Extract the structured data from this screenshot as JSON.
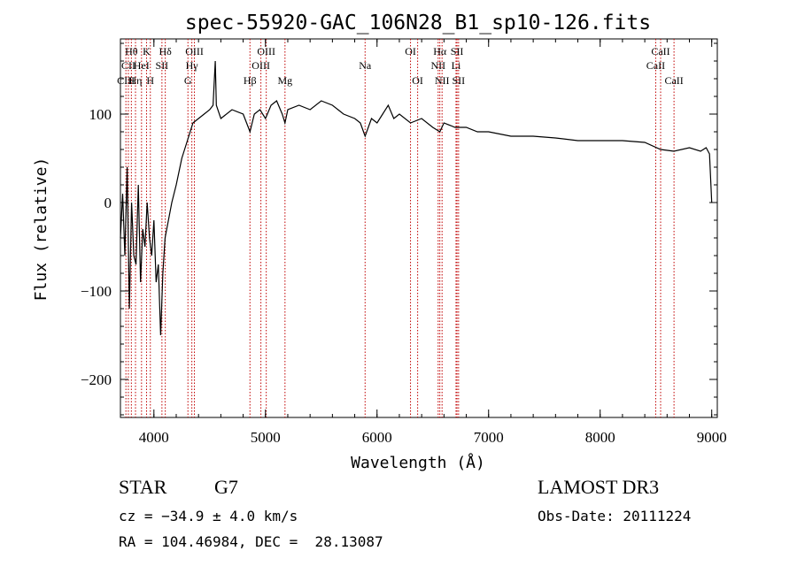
{
  "chart_data": {
    "type": "line",
    "title": "spec-55920-GAC_106N28_B1_sp10-126.fits",
    "xlabel": "Wavelength (Å)",
    "ylabel": "Flux (relative)",
    "xlim": [
      3700,
      9050
    ],
    "ylim": [
      -243,
      185
    ],
    "xticks": [
      4000,
      5000,
      6000,
      7000,
      8000,
      9000
    ],
    "yticks": [
      -200,
      -100,
      0,
      100
    ],
    "grid": false,
    "series": [
      {
        "name": "spectrum",
        "x": [
          3700,
          3720,
          3740,
          3760,
          3780,
          3800,
          3820,
          3840,
          3860,
          3880,
          3900,
          3920,
          3940,
          3960,
          3980,
          4000,
          4020,
          4040,
          4060,
          4080,
          4100,
          4130,
          4160,
          4200,
          4250,
          4300,
          4350,
          4400,
          4450,
          4500,
          4530,
          4550,
          4560,
          4600,
          4700,
          4800,
          4861,
          4900,
          4950,
          5000,
          5050,
          5100,
          5150,
          5175,
          5200,
          5300,
          5400,
          5500,
          5600,
          5700,
          5800,
          5850,
          5893,
          5950,
          6000,
          6050,
          6100,
          6150,
          6200,
          6300,
          6400,
          6500,
          6563,
          6600,
          6700,
          6800,
          6900,
          7000,
          7200,
          7400,
          7600,
          7800,
          8000,
          8200,
          8400,
          8542,
          8662,
          8800,
          8900,
          8950,
          8980,
          9000
        ],
        "y": [
          -40,
          10,
          -60,
          40,
          -120,
          0,
          -60,
          -70,
          20,
          -90,
          -30,
          -50,
          0,
          -40,
          -60,
          -20,
          -90,
          -70,
          -150,
          -80,
          -40,
          -20,
          0,
          20,
          50,
          70,
          90,
          95,
          100,
          105,
          110,
          160,
          110,
          95,
          105,
          100,
          80,
          100,
          105,
          95,
          110,
          115,
          100,
          90,
          105,
          110,
          105,
          115,
          110,
          100,
          95,
          90,
          75,
          95,
          90,
          100,
          110,
          95,
          100,
          90,
          95,
          85,
          80,
          90,
          85,
          85,
          80,
          80,
          75,
          75,
          73,
          70,
          70,
          70,
          68,
          60,
          58,
          62,
          58,
          62,
          55,
          0
        ]
      }
    ],
    "lines": [
      {
        "name": "Hθ",
        "wave": 3798,
        "row": 1
      },
      {
        "name": "CII",
        "wave": 3771,
        "row": 2
      },
      {
        "name": "CIII",
        "wave": 3749,
        "row": 3
      },
      {
        "name": "K",
        "wave": 3934,
        "row": 1
      },
      {
        "name": "HeI",
        "wave": 3889,
        "row": 2
      },
      {
        "name": "Hη",
        "wave": 3835,
        "row": 3
      },
      {
        "name": "H",
        "wave": 3968,
        "row": 3
      },
      {
        "name": "Hδ",
        "wave": 4102,
        "row": 1
      },
      {
        "name": "SII",
        "wave": 4072,
        "row": 2
      },
      {
        "name": "OIII",
        "wave": 4363,
        "row": 1
      },
      {
        "name": "Hγ",
        "wave": 4340,
        "row": 2
      },
      {
        "name": "G",
        "wave": 4305,
        "row": 3
      },
      {
        "name": "OIII",
        "wave": 5007,
        "row": 1
      },
      {
        "name": "OIII",
        "wave": 4959,
        "row": 2
      },
      {
        "name": "Hβ",
        "wave": 4861,
        "row": 3
      },
      {
        "name": "Mg",
        "wave": 5175,
        "row": 3
      },
      {
        "name": "Na",
        "wave": 5893,
        "row": 2
      },
      {
        "name": "OI",
        "wave": 6300,
        "row": 1
      },
      {
        "name": "OI",
        "wave": 6364,
        "row": 3
      },
      {
        "name": "Hα",
        "wave": 6563,
        "row": 1
      },
      {
        "name": "NII",
        "wave": 6548,
        "row": 2
      },
      {
        "name": "NII",
        "wave": 6583,
        "row": 3
      },
      {
        "name": "SII",
        "wave": 6717,
        "row": 1
      },
      {
        "name": "Li",
        "wave": 6708,
        "row": 2
      },
      {
        "name": "SII",
        "wave": 6731,
        "row": 3
      },
      {
        "name": "CaII",
        "wave": 8542,
        "row": 1
      },
      {
        "name": "CaII",
        "wave": 8498,
        "row": 2
      },
      {
        "name": "CaII",
        "wave": 8662,
        "row": 3
      }
    ]
  },
  "info": {
    "object_class": "STAR",
    "subclass": "G7",
    "survey": "LAMOST DR3",
    "velocity": "cz = −34.9 ± 4.0 km/s",
    "obs_date": "Obs-Date: 20111224",
    "coords": "RA = 104.46984, DEC =  28.13087"
  }
}
